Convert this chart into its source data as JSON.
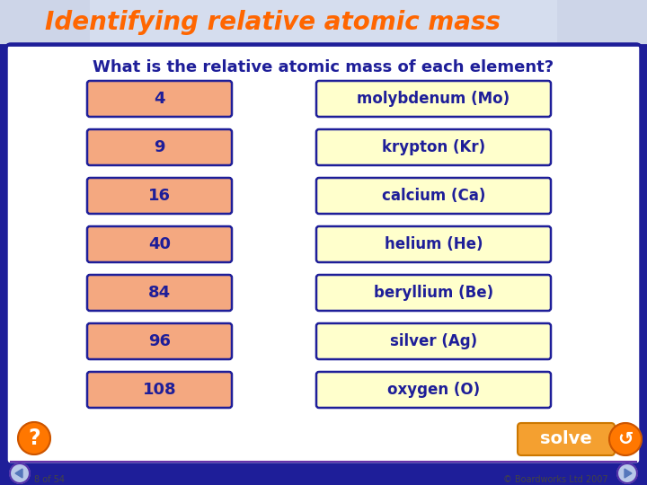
{
  "title": "Identifying relative atomic mass",
  "question": "What is the relative atomic mass of each element?",
  "numbers": [
    "4",
    "9",
    "16",
    "40",
    "84",
    "96",
    "108"
  ],
  "elements": [
    "molybdenum (Mo)",
    "krypton (Kr)",
    "calcium (Ca)",
    "helium (He)",
    "beryllium (Be)",
    "silver (Ag)",
    "oxygen (O)"
  ],
  "bg_color": "#1e1e99",
  "header_bg_left": "#c8d0e8",
  "header_bg_right": "#e8ecf8",
  "main_bg": "#ffffff",
  "number_box_color": "#f4a880",
  "number_box_border": "#1e1e99",
  "element_box_color": "#ffffcc",
  "element_box_border": "#1e1e99",
  "title_color": "#ff6600",
  "question_color": "#1e1e99",
  "box_text_color": "#1e1e99",
  "solve_btn_color": "#f4a030",
  "solve_text_color": "#ffffff",
  "footer_text": "8 of 54",
  "copyright_text": "© Boardworks Ltd 2007",
  "footer_line_color": "#6633aa",
  "nav_circle_color": "#ccccee",
  "nav_border_color": "#5533aa",
  "qmark_color": "#ff7700",
  "figw": 7.2,
  "figh": 5.4,
  "dpi": 100
}
